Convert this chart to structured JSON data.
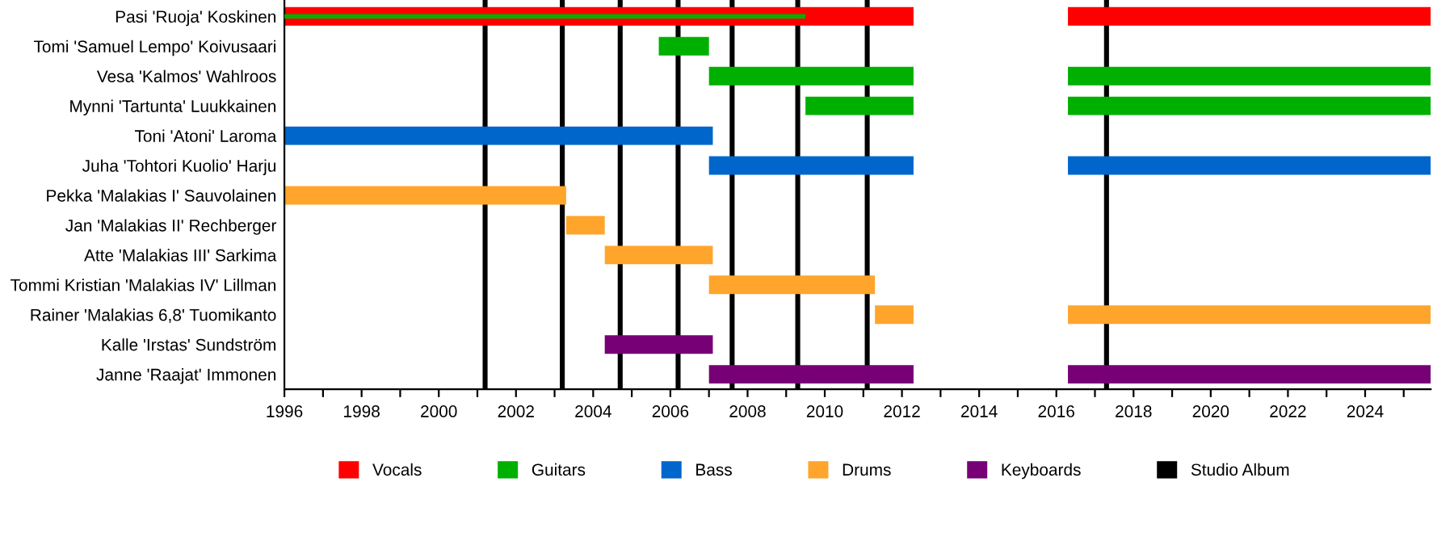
{
  "chart_data": {
    "type": "bar",
    "orientation": "horizontal",
    "legend": "bottom",
    "grid": false,
    "categories": [
      "Pasi 'Ruoja' Koskinen",
      "Tomi 'Samuel Lempo' Koivusaari",
      "Vesa 'Kalmos' Wahlroos",
      "Mynni 'Tartunta' Luukkainen",
      "Toni 'Atoni' Laroma",
      "Juha 'Tohtori Kuolio' Harju",
      "Pekka 'Malakias I' Sauvolainen",
      "Jan 'Malakias II' Rechberger",
      "Atte 'Malakias III' Sarkima",
      "Tommi Kristian 'Malakias IV' Lillman",
      "Rainer 'Malakias 6,8' Tuomikanto",
      "Kalle 'Irstas' Sundström",
      "Janne 'Raajat' Immonen"
    ],
    "series": [
      {
        "name": "Vocals",
        "color": "#ff0000",
        "base": [
          1996,
          null,
          null,
          null,
          null,
          null,
          null,
          null,
          null,
          null,
          null,
          null,
          null
        ],
        "values": [
          16.3,
          null,
          null,
          null,
          null,
          null,
          null,
          null,
          null,
          null,
          null,
          null,
          null
        ]
      },
      {
        "color": "#ff0000",
        "base": [
          2016.3,
          null,
          null,
          null,
          null,
          null,
          null,
          null,
          null,
          null,
          null,
          null,
          null
        ],
        "values": [
          9.4,
          null,
          null,
          null,
          null,
          null,
          null,
          null,
          null,
          null,
          null,
          null,
          null
        ]
      },
      {
        "name": "Guitars",
        "color": "#00b000",
        "base": [
          1996,
          2005.7,
          2007.0,
          2009.5,
          null,
          null,
          null,
          null,
          null,
          null,
          null,
          null,
          null
        ],
        "values": [
          13.5,
          1.3,
          5.3,
          2.8,
          null,
          null,
          null,
          null,
          null,
          null,
          null,
          null,
          null
        ]
      },
      {
        "color": "#00b000",
        "base": [
          null,
          null,
          2016.3,
          2016.3,
          null,
          null,
          null,
          null,
          null,
          null,
          null,
          null,
          null
        ],
        "values": [
          null,
          null,
          9.4,
          9.4,
          null,
          null,
          null,
          null,
          null,
          null,
          null,
          null,
          null
        ]
      },
      {
        "name": "Bass",
        "color": "#0066cc",
        "base": [
          null,
          null,
          null,
          null,
          1996,
          2007.0,
          null,
          null,
          null,
          null,
          null,
          null,
          null
        ],
        "values": [
          null,
          null,
          null,
          null,
          11.1,
          5.3,
          null,
          null,
          null,
          null,
          null,
          null,
          null
        ]
      },
      {
        "color": "#0066cc",
        "base": [
          null,
          null,
          null,
          null,
          null,
          2016.3,
          null,
          null,
          null,
          null,
          null,
          null,
          null
        ],
        "values": [
          null,
          null,
          null,
          null,
          null,
          9.4,
          null,
          null,
          null,
          null,
          null,
          null,
          null
        ]
      },
      {
        "name": "Drums",
        "color": "#ffa52c",
        "base": [
          null,
          null,
          null,
          null,
          null,
          null,
          1996,
          2003.3,
          2004.3,
          2007.0,
          2011.3,
          null,
          null
        ],
        "values": [
          null,
          null,
          null,
          null,
          null,
          null,
          7.3,
          1.0,
          2.8,
          4.3,
          1.0,
          null,
          null
        ]
      },
      {
        "color": "#ffa52c",
        "base": [
          null,
          null,
          null,
          null,
          null,
          null,
          null,
          null,
          null,
          null,
          2016.3,
          null,
          null
        ],
        "values": [
          null,
          null,
          null,
          null,
          null,
          null,
          null,
          null,
          null,
          null,
          9.4,
          null,
          null
        ]
      },
      {
        "name": "Keyboards",
        "color": "#770077",
        "base": [
          null,
          null,
          null,
          null,
          null,
          null,
          null,
          null,
          null,
          null,
          null,
          2004.3,
          2007.0
        ],
        "values": [
          null,
          null,
          null,
          null,
          null,
          null,
          null,
          null,
          null,
          null,
          null,
          2.8,
          5.3
        ]
      },
      {
        "color": "#770077",
        "base": [
          null,
          null,
          null,
          null,
          null,
          null,
          null,
          null,
          null,
          null,
          null,
          null,
          2016.3
        ],
        "values": [
          null,
          null,
          null,
          null,
          null,
          null,
          null,
          null,
          null,
          null,
          null,
          null,
          9.4
        ]
      }
    ],
    "ref_lines": [
      {
        "axis": "x",
        "value": 2001.2,
        "label": "Studio Album",
        "color": "#000000"
      },
      {
        "axis": "x",
        "value": 2003.2,
        "color": "#000000"
      },
      {
        "axis": "x",
        "value": 2004.7,
        "color": "#000000"
      },
      {
        "axis": "x",
        "value": 2006.2,
        "color": "#000000"
      },
      {
        "axis": "x",
        "value": 2007.6,
        "color": "#000000"
      },
      {
        "axis": "x",
        "value": 2009.3,
        "color": "#000000"
      },
      {
        "axis": "x",
        "value": 2011.1,
        "color": "#000000"
      },
      {
        "axis": "x",
        "value": 2017.3,
        "color": "#000000"
      }
    ],
    "xlim": [
      1996,
      2025.7
    ],
    "xticks": [
      1996,
      {
        "value": 1997,
        "label": null
      },
      1998,
      {
        "value": 1999,
        "label": null
      },
      2000,
      {
        "value": 2001,
        "label": null
      },
      2002,
      {
        "value": 2003,
        "label": null
      },
      2004,
      {
        "value": 2005,
        "label": null
      },
      2006,
      {
        "value": 2007,
        "label": null
      },
      2008,
      {
        "value": 2009,
        "label": null
      },
      2010,
      {
        "value": 2011,
        "label": null
      },
      2012,
      {
        "value": 2013,
        "label": null
      },
      2014,
      {
        "value": 2015,
        "label": null
      },
      2016,
      {
        "value": 2017,
        "label": null
      },
      2018,
      {
        "value": 2019,
        "label": null
      },
      2020,
      {
        "value": 2021,
        "label": null
      },
      2022,
      {
        "value": 2023,
        "label": null
      },
      2024,
      {
        "value": 2025,
        "label": null
      }
    ]
  }
}
